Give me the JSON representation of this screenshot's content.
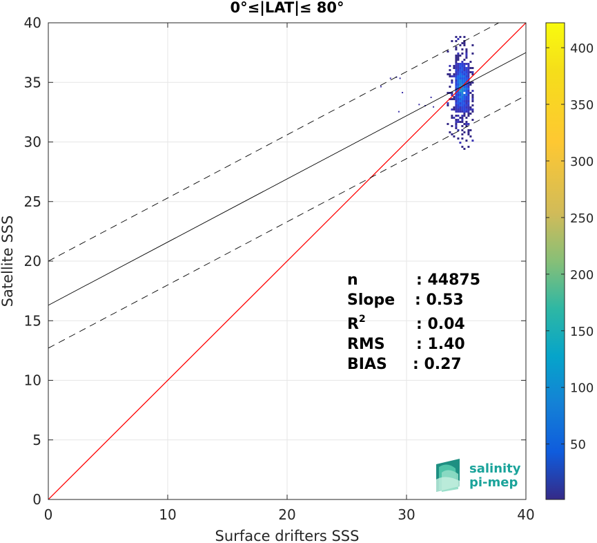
{
  "chart_data": {
    "type": "scatter",
    "title": "0°≤|LAT|≤ 80°",
    "xlabel": "Surface drifters SSS",
    "ylabel": "Satellite SSS",
    "xlim": [
      0,
      40
    ],
    "ylim": [
      0,
      40
    ],
    "xticks": [
      "0",
      "10",
      "20",
      "30",
      "40"
    ],
    "yticks": [
      "0",
      "5",
      "10",
      "15",
      "20",
      "25",
      "30",
      "35",
      "40"
    ],
    "grid": true,
    "colorbar": {
      "range": [
        1,
        422
      ],
      "ticks": [
        "50",
        "100",
        "150",
        "200",
        "250",
        "300",
        "350",
        "400"
      ],
      "tick_values": [
        50,
        100,
        150,
        200,
        250,
        300,
        350,
        400
      ],
      "colormap": "parula"
    },
    "lines": [
      {
        "name": "identity",
        "color": "#ff0000",
        "x": [
          0,
          40
        ],
        "y": [
          0,
          40
        ]
      },
      {
        "name": "fit",
        "color": "#000000",
        "style": "solid",
        "x": [
          0,
          40
        ],
        "y": [
          16.3,
          37.5
        ]
      },
      {
        "name": "fit_upper",
        "color": "#000000",
        "style": "dashed",
        "x": [
          0,
          40
        ],
        "y": [
          20.0,
          41.2
        ]
      },
      {
        "name": "fit_lower",
        "color": "#000000",
        "style": "dashed",
        "x": [
          0,
          40
        ],
        "y": [
          12.7,
          33.9
        ]
      }
    ],
    "density_cluster": {
      "x_range": [
        33.2,
        35.5
      ],
      "y_range": [
        27.3,
        38.9
      ],
      "core_x_range": [
        33.9,
        35.2
      ],
      "core_y_range": [
        32.5,
        36.8
      ],
      "outliers": [
        [
          27.8,
          34.7
        ],
        [
          28.6,
          35.4
        ],
        [
          29.1,
          35.5
        ],
        [
          29.4,
          35.4
        ],
        [
          29.6,
          34.2
        ],
        [
          29.3,
          32.6
        ],
        [
          31.0,
          33.2
        ],
        [
          31.5,
          33.1
        ],
        [
          32.0,
          33.8
        ],
        [
          32.2,
          33.0
        ]
      ]
    },
    "annotations": {
      "lines": [
        {
          "label": "n",
          "value": ": 44875"
        },
        {
          "label": "Slope",
          "value": ": 0.53"
        },
        {
          "label": "R",
          "sup": "2",
          "value": ": 0.04"
        },
        {
          "label": "RMS",
          "value": ": 1.40"
        },
        {
          "label": "BIAS",
          "value": ": 0.27"
        }
      ]
    }
  },
  "logo": {
    "line1": "salinity",
    "line2": "pi-mep"
  }
}
